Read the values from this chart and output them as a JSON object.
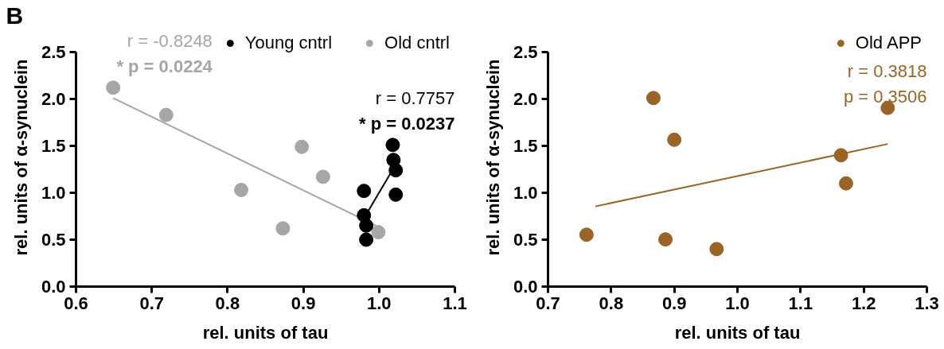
{
  "chart_data": [
    {
      "type": "scatter",
      "xlabel": "rel. units of tau",
      "ylabel": "rel. units of α-synuclein",
      "xlim": [
        0.6,
        1.1
      ],
      "ylim": [
        0,
        2.5
      ],
      "xticks": [
        {
          "value": 0.6,
          "label": "0.6"
        },
        {
          "value": 0.7,
          "label": "0.7"
        },
        {
          "value": 0.8,
          "label": "0.8"
        },
        {
          "value": 0.9,
          "label": "0.9"
        },
        {
          "value": 1.0,
          "label": "1.0"
        },
        {
          "value": 1.1,
          "label": "1.1"
        }
      ],
      "yticks": [
        {
          "value": 0,
          "label": "0.0"
        },
        {
          "value": 0.5,
          "label": "0.5"
        },
        {
          "value": 1.0,
          "label": "1.0"
        },
        {
          "value": 1.5,
          "label": "1.5"
        },
        {
          "value": 2.0,
          "label": "2.0"
        },
        {
          "value": 2.5,
          "label": "2.5"
        }
      ],
      "grid": false,
      "legend": "top right",
      "annotations": [
        "B",
        "r = -0.8248",
        "* p = 0.0224",
        "r = 0.7757",
        "* p = 0.0237"
      ],
      "series": [
        {
          "name": "Old cntrl",
          "color": "#a6a6a6",
          "marker": "circle",
          "x": [
            0.649,
            0.719,
            0.818,
            0.873,
            0.898,
            0.926,
            0.999
          ],
          "values": [
            2.12,
            1.83,
            1.03,
            0.62,
            1.49,
            1.17,
            0.58
          ]
        },
        {
          "name": "Young cntrl",
          "color": "#000000",
          "marker": "circle",
          "x": [
            0.98,
            0.98,
            0.983,
            0.983,
            1.018,
            1.019,
            1.022,
            1.022
          ],
          "values": [
            1.02,
            0.76,
            0.65,
            0.5,
            1.51,
            1.35,
            1.24,
            0.98
          ]
        },
        {
          "type": "line",
          "color": "#a6a6a6",
          "x": [
            0.649,
            0.996
          ],
          "values": [
            2.01,
            0.65
          ]
        },
        {
          "type": "line",
          "color": "#000000",
          "x": [
            0.983,
            1.016
          ],
          "values": [
            0.77,
            1.22
          ]
        }
      ]
    },
    {
      "type": "scatter",
      "xlabel": "rel. units of tau",
      "ylabel": "rel. units of α-synuclein",
      "xlim": [
        0.7,
        1.3
      ],
      "ylim": [
        0,
        2.5
      ],
      "xticks": [
        {
          "value": 0.7,
          "label": "0.7"
        },
        {
          "value": 0.8,
          "label": "0.8"
        },
        {
          "value": 0.9,
          "label": "0.9"
        },
        {
          "value": 1.0,
          "label": "1.0"
        },
        {
          "value": 1.1,
          "label": "1.1"
        },
        {
          "value": 1.2,
          "label": "1.2"
        },
        {
          "value": 1.3,
          "label": "1.3"
        }
      ],
      "yticks": [
        {
          "value": 0,
          "label": "0.0"
        },
        {
          "value": 0.5,
          "label": "0.5"
        },
        {
          "value": 1.0,
          "label": "1.0"
        },
        {
          "value": 1.5,
          "label": "1.5"
        },
        {
          "value": 2.0,
          "label": "2.0"
        },
        {
          "value": 2.5,
          "label": "2.5"
        }
      ],
      "grid": false,
      "legend": "top right",
      "annotations": [
        "r = 0.3818",
        "p = 0.3506"
      ],
      "series": [
        {
          "name": "Old APP",
          "color": "#9a6424",
          "marker": "circle",
          "x": [
            0.761,
            0.867,
            0.9,
            0.886,
            0.967,
            1.164,
            1.172,
            1.238
          ],
          "values": [
            0.553,
            2.01,
            1.565,
            0.503,
            0.4,
            1.4,
            1.1,
            1.905
          ]
        },
        {
          "type": "line",
          "color": "#9a6424",
          "x": [
            0.775,
            1.238
          ],
          "values": [
            0.855,
            1.52
          ]
        }
      ]
    }
  ]
}
